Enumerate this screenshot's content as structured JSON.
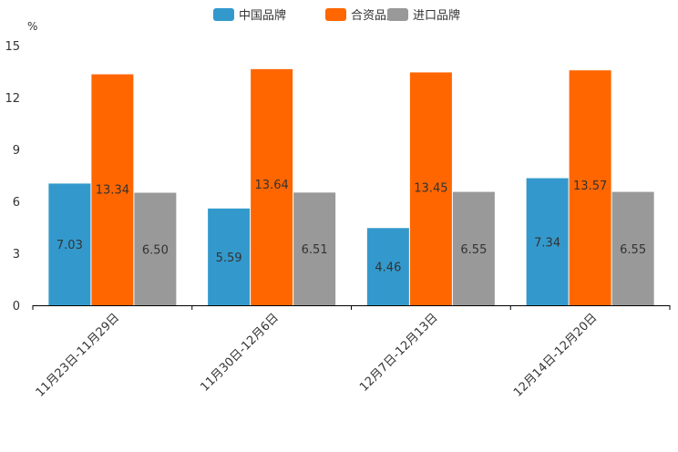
{
  "chart_data": {
    "type": "bar",
    "title": "",
    "xlabel": "",
    "ylabel": "%",
    "ylim": [
      0,
      15
    ],
    "yticks": [
      0,
      3,
      6,
      9,
      12,
      15
    ],
    "grid": false,
    "legend_position": "top-center",
    "categories": [
      "11月23日-11月29日",
      "11月30日-12月6日",
      "12月7日-12月13日",
      "12月14日-12月20日"
    ],
    "series": [
      {
        "name": "中国品牌",
        "color": "#3399cc",
        "values": [
          7.03,
          5.59,
          4.46,
          7.34
        ]
      },
      {
        "name": "合资品牌",
        "color": "#ff6600",
        "values": [
          13.34,
          13.64,
          13.45,
          13.57
        ]
      },
      {
        "name": "进口品牌",
        "color": "#999999",
        "values": [
          6.5,
          6.51,
          6.55,
          6.55
        ]
      }
    ],
    "data_labels": [
      [
        "7.03",
        "5.59",
        "4.46",
        "7.34"
      ],
      [
        "13.34",
        "13.64",
        "13.45",
        "13.57"
      ],
      [
        "6.50",
        "6.51",
        "6.55",
        "6.55"
      ]
    ]
  }
}
